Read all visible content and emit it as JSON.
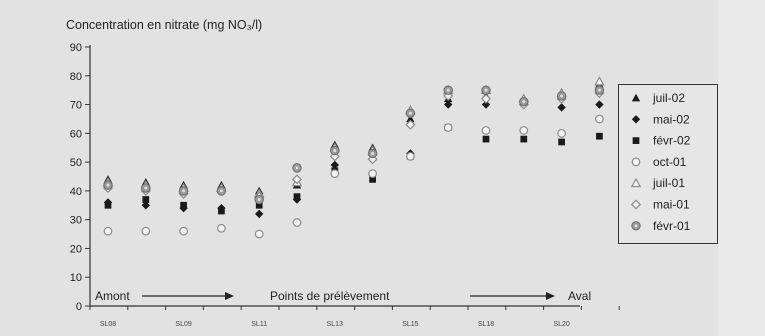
{
  "chart_data": {
    "type": "scatter",
    "title": "Concentration en nitrate (mg NO₃/l)",
    "xlabel": "Points de prélèvement",
    "ylabel": "",
    "ylim": [
      0,
      90
    ],
    "yticks": [
      0,
      10,
      20,
      30,
      40,
      50,
      60,
      70,
      80,
      90
    ],
    "xtick_labels": [
      "SL08",
      "SL09",
      "SL11",
      "SL13",
      "SL15",
      "SL18",
      "SL20"
    ],
    "annotations": {
      "left": "Amont",
      "right": "Aval",
      "center": "Points de prélèvement"
    },
    "grid": false,
    "legend_position": "right",
    "points_x": [
      1,
      2,
      3,
      4,
      5,
      6,
      7,
      8,
      9,
      10,
      11,
      12,
      13,
      14
    ],
    "series": [
      {
        "name": "juil-02",
        "marker": "triangle-filled",
        "values": [
          44,
          43,
          42,
          42,
          40,
          42,
          56,
          55,
          65,
          72,
          73,
          72,
          73,
          77
        ]
      },
      {
        "name": "mai-02",
        "marker": "diamond-filled",
        "values": [
          36,
          35,
          34,
          34,
          32,
          37,
          49,
          46,
          53,
          70,
          70,
          70,
          69,
          70
        ]
      },
      {
        "name": "févr-02",
        "marker": "square-filled",
        "values": [
          35,
          37,
          35,
          33,
          35,
          38,
          47,
          44,
          52,
          62,
          58,
          58,
          57,
          59
        ]
      },
      {
        "name": "oct-01",
        "marker": "circle-open",
        "values": [
          26,
          26,
          26,
          27,
          25,
          29,
          46,
          46,
          52,
          62,
          61,
          61,
          60,
          65
        ]
      },
      {
        "name": "juil-01",
        "marker": "triangle-open",
        "values": [
          43,
          42,
          41,
          41,
          39,
          43,
          55,
          54,
          68,
          75,
          75,
          72,
          74,
          78
        ]
      },
      {
        "name": "mai-01",
        "marker": "diamond-open",
        "values": [
          41,
          40,
          39,
          40,
          38,
          44,
          52,
          51,
          63,
          73,
          72,
          70,
          72,
          74
        ]
      },
      {
        "name": "févr-01",
        "marker": "circle-dot",
        "values": [
          42,
          41,
          40,
          40,
          37,
          48,
          54,
          53,
          67,
          75,
          75,
          71,
          73,
          75
        ]
      }
    ]
  }
}
